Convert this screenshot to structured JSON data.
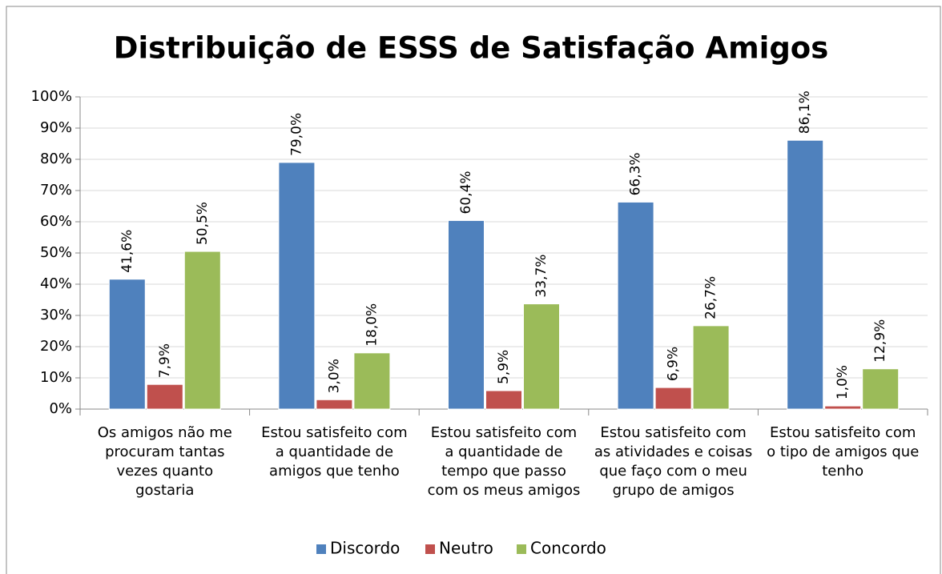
{
  "chart_data": {
    "type": "bar",
    "title": "Distribuição de ESSS de Satisfação Amigos",
    "categories": [
      [
        "Os amigos não me",
        "procuram tantas",
        "vezes quanto",
        "gostaria"
      ],
      [
        "Estou satisfeito com",
        "a quantidade de",
        "amigos que tenho"
      ],
      [
        "Estou satisfeito com",
        "a quantidade de",
        "tempo que passo",
        "com os meus amigos"
      ],
      [
        "Estou satisfeito com",
        "as atividades e coisas",
        "que faço com o meu",
        "grupo de amigos"
      ],
      [
        "Estou satisfeito com",
        "o tipo de amigos que",
        "tenho"
      ]
    ],
    "series": [
      {
        "name": "Discordo",
        "color": "#4f81bd",
        "values": [
          41.6,
          79.0,
          60.4,
          66.3,
          86.1
        ],
        "value_labels": [
          "41,6%",
          "79,0%",
          "60,4%",
          "66,3%",
          "86,1%"
        ]
      },
      {
        "name": "Neutro",
        "color": "#c0504d",
        "values": [
          7.9,
          3.0,
          5.9,
          6.9,
          1.0
        ],
        "value_labels": [
          "7,9%",
          "3,0%",
          "5,9%",
          "6,9%",
          "1,0%"
        ]
      },
      {
        "name": "Concordo",
        "color": "#9bbb59",
        "values": [
          50.5,
          18.0,
          33.7,
          26.7,
          12.9
        ],
        "value_labels": [
          "50,5%",
          "18,0%",
          "33,7%",
          "26,7%",
          "12,9%"
        ]
      }
    ],
    "ylim": [
      0,
      100
    ],
    "yticks": [
      {
        "value": 0,
        "label": "0%"
      },
      {
        "value": 10,
        "label": "10%"
      },
      {
        "value": 20,
        "label": "20%"
      },
      {
        "value": 30,
        "label": "30%"
      },
      {
        "value": 40,
        "label": "40%"
      },
      {
        "value": 50,
        "label": "50%"
      },
      {
        "value": 60,
        "label": "60%"
      },
      {
        "value": 70,
        "label": "70%"
      },
      {
        "value": 80,
        "label": "80%"
      },
      {
        "value": 90,
        "label": "90%"
      },
      {
        "value": 100,
        "label": "100%"
      }
    ],
    "legend": "bottom"
  }
}
